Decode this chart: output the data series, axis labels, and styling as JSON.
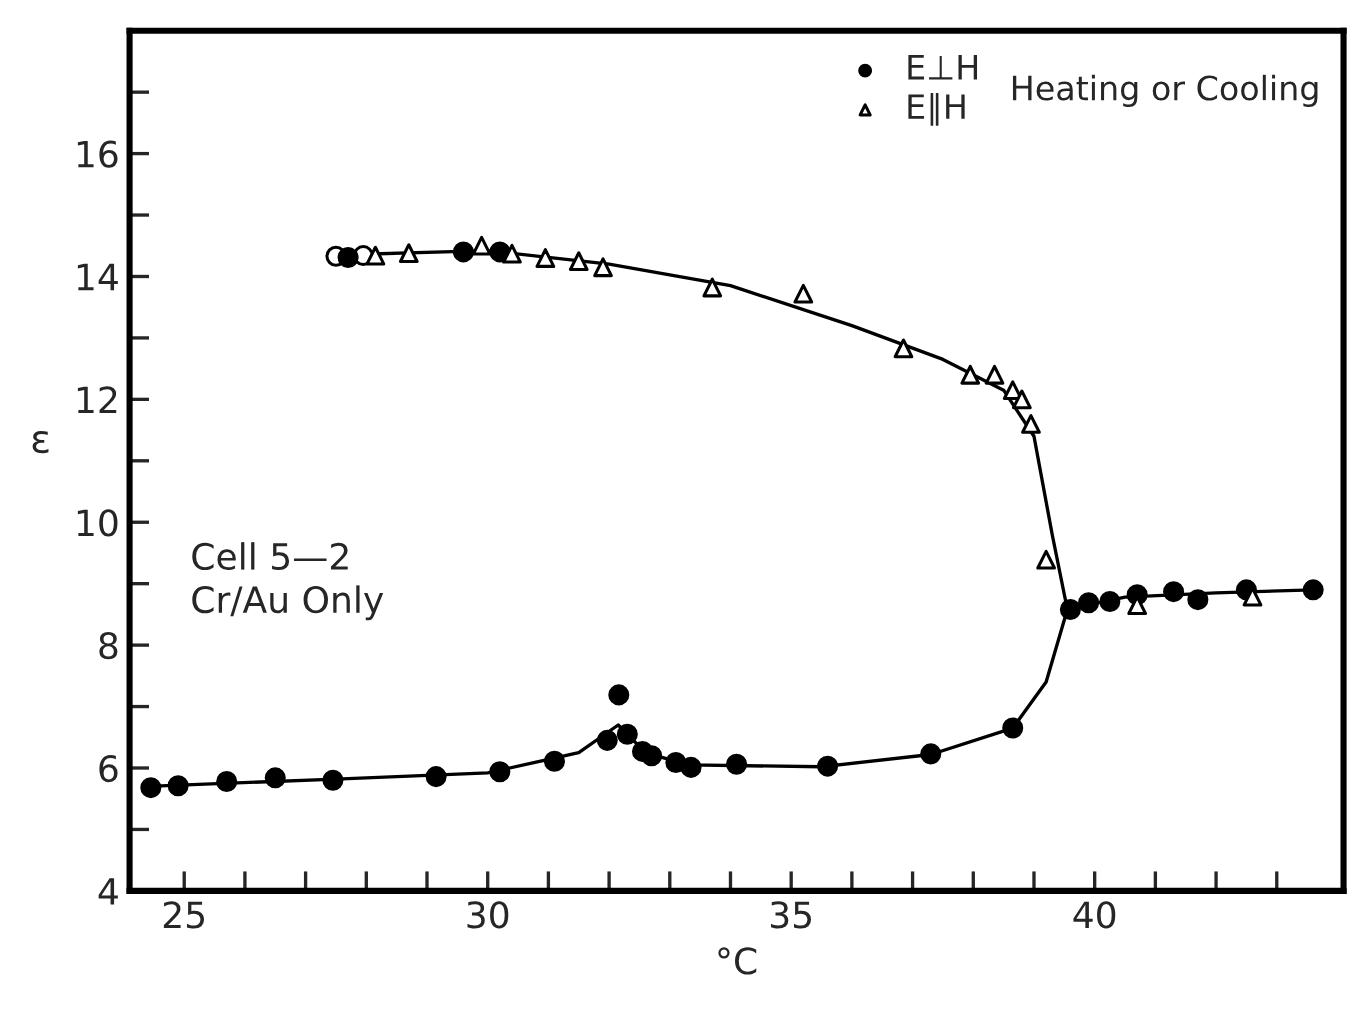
{
  "chart_data": {
    "type": "scatter",
    "xlabel": "°C",
    "ylabel": "ε",
    "xlim": [
      24.1,
      44.1
    ],
    "ylim": [
      4,
      18
    ],
    "xticks": [
      25,
      30,
      35,
      40,
      {
        "value": 26,
        "label": null
      },
      {
        "value": 27,
        "label": null
      },
      {
        "value": 28,
        "label": null
      },
      {
        "value": 29,
        "label": null
      },
      {
        "value": 31,
        "label": null
      },
      {
        "value": 32,
        "label": null
      },
      {
        "value": 33,
        "label": null
      },
      {
        "value": 34,
        "label": null
      },
      {
        "value": 36,
        "label": null
      },
      {
        "value": 37,
        "label": null
      },
      {
        "value": 38,
        "label": null
      },
      {
        "value": 39,
        "label": null
      },
      {
        "value": 41,
        "label": null
      },
      {
        "value": 42,
        "label": null
      },
      {
        "value": 43,
        "label": null
      }
    ],
    "yticks": [
      4,
      6,
      8,
      10,
      12,
      14,
      16,
      {
        "value": 5,
        "label": null
      },
      {
        "value": 7,
        "label": null
      },
      {
        "value": 9,
        "label": null
      },
      {
        "value": 11,
        "label": null
      },
      {
        "value": 13,
        "label": null
      },
      {
        "value": 15,
        "label": null
      },
      {
        "value": 17,
        "label": null
      }
    ],
    "grid": false,
    "legend": "top right",
    "annotations": [
      "Heating or Cooling",
      "Cell 5—2\nCr/Au Only"
    ],
    "series": [
      {
        "type": "line",
        "marker": "none",
        "color": "#000000",
        "x": [
          27.5,
          30,
          32,
          34,
          36,
          37.5,
          38.5,
          39,
          39.3,
          39.55
        ],
        "values": [
          14.35,
          14.42,
          14.2,
          13.85,
          13.2,
          12.65,
          12.15,
          11.4,
          9.8,
          8.58
        ]
      },
      {
        "type": "line",
        "marker": "none",
        "color": "#000000",
        "x": [
          24.4,
          27.5,
          30,
          31.5,
          32.15,
          32.6,
          33.3,
          35.5,
          37.3,
          38.65,
          39.2,
          39.55,
          40.5,
          42,
          43.6
        ],
        "values": [
          5.7,
          5.82,
          5.92,
          6.25,
          6.7,
          6.25,
          6.05,
          6.02,
          6.22,
          6.65,
          7.4,
          8.58,
          8.78,
          8.85,
          8.9
        ]
      },
      {
        "marker": "circle",
        "color": "#ffffff",
        "x": [
          27.5,
          27.95
        ],
        "values": [
          14.33,
          14.34
        ]
      },
      {
        "marker": "circle",
        "color": "#000000",
        "name": "E⊥H",
        "x": [
          24.45,
          24.9,
          25.7,
          26.5,
          27.45,
          29.15,
          30.2,
          31.1,
          31.97,
          32.16,
          32.3,
          32.55,
          32.7,
          33.1,
          33.35,
          34.1,
          35.6,
          37.3,
          38.65,
          39.6,
          39.9,
          40.25,
          40.7,
          41.3,
          41.7,
          42.5,
          43.6,
          27.7,
          29.6,
          30.2
        ],
        "values": [
          5.68,
          5.71,
          5.78,
          5.84,
          5.8,
          5.86,
          5.94,
          6.11,
          6.45,
          7.19,
          6.55,
          6.27,
          6.2,
          6.09,
          6.01,
          6.06,
          6.03,
          6.23,
          6.65,
          8.58,
          8.69,
          8.71,
          8.82,
          8.87,
          8.74,
          8.9,
          8.9,
          14.31,
          14.4,
          14.4
        ]
      },
      {
        "marker": "triangle",
        "color": "#ffffff",
        "name": "E∥H",
        "x": [
          28.15,
          28.7,
          29.9,
          30.4,
          30.95,
          31.5,
          31.9,
          33.7,
          35.2,
          36.85,
          37.95,
          38.35,
          38.65,
          38.8,
          38.95,
          39.2,
          40.7,
          42.6
        ],
        "values": [
          14.34,
          14.38,
          14.5,
          14.37,
          14.3,
          14.25,
          14.15,
          13.82,
          13.72,
          12.83,
          12.4,
          12.4,
          12.15,
          12.0,
          11.6,
          9.39,
          8.65,
          8.79
        ]
      }
    ]
  }
}
